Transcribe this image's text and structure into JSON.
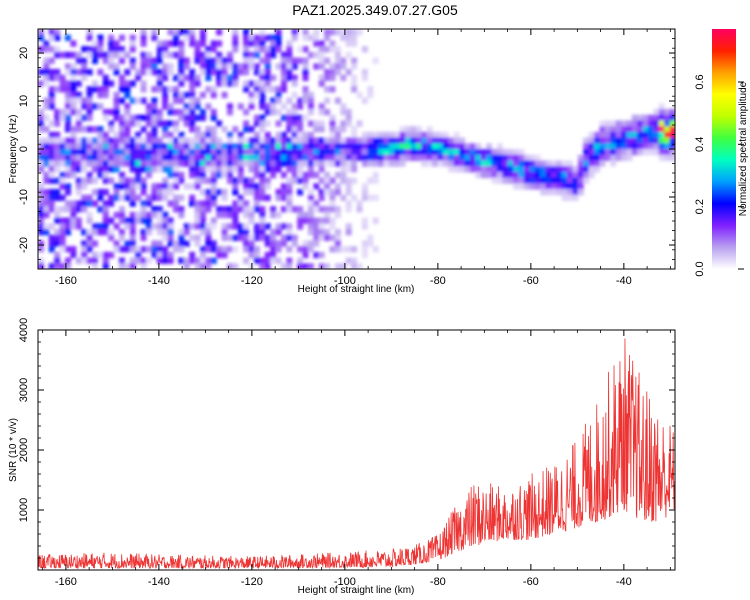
{
  "title": "PAZ1.2025.349.07.27.G05",
  "chart_data": [
    {
      "type": "heatmap",
      "xlabel": "Height of straight line (km)",
      "ylabel": "Frequency (Hz)",
      "xlim": [
        -166,
        -29
      ],
      "ylim": [
        -25,
        25
      ],
      "xticks": [
        -160,
        -140,
        -120,
        -100,
        -80,
        -60,
        -40
      ],
      "xtick_labels": [
        "-160",
        "-140",
        "-120",
        "-100",
        "-80",
        "-60",
        "-40"
      ],
      "yticks": [
        -20,
        -10,
        0,
        10,
        20
      ],
      "ytick_labels": [
        "-20",
        "-10",
        "0",
        "10",
        "20"
      ],
      "colorbar": {
        "label": "Normalized spectral amplitude",
        "range": [
          0.0,
          0.77
        ],
        "ticks": [
          0.0,
          0.2,
          0.4,
          0.6
        ],
        "tick_labels": [
          "0.0",
          "0.2",
          "0.4",
          "0.6"
        ],
        "colors": [
          "#ffffff",
          "#b8a0f0",
          "#8020ff",
          "#0000ff",
          "#00a0ff",
          "#00ffc0",
          "#40ff40",
          "#c0ff00",
          "#ffff00",
          "#ffa000",
          "#ff2000",
          "#ff0060"
        ]
      },
      "ridge": [
        {
          "x": -160,
          "y": -1
        },
        {
          "x": -150,
          "y": -1
        },
        {
          "x": -140,
          "y": -1.5
        },
        {
          "x": -130,
          "y": -1
        },
        {
          "x": -120,
          "y": -1
        },
        {
          "x": -110,
          "y": -0.5
        },
        {
          "x": -100,
          "y": -0.5
        },
        {
          "x": -90,
          "y": 0
        },
        {
          "x": -85,
          "y": 1
        },
        {
          "x": -80,
          "y": 0
        },
        {
          "x": -75,
          "y": -1
        },
        {
          "x": -70,
          "y": -2.5
        },
        {
          "x": -65,
          "y": -3.5
        },
        {
          "x": -60,
          "y": -5
        },
        {
          "x": -55,
          "y": -6
        },
        {
          "x": -50,
          "y": -7
        },
        {
          "x": -48,
          "y": -2
        },
        {
          "x": -45,
          "y": 1
        },
        {
          "x": -40,
          "y": 2
        },
        {
          "x": -35,
          "y": 3.5
        },
        {
          "x": -30,
          "y": 3.5
        }
      ]
    },
    {
      "type": "line",
      "xlabel": "Height of straight line (km)",
      "ylabel": "SNR (10 * v/v)",
      "xlim": [
        -166,
        -29
      ],
      "ylim": [
        0,
        4000
      ],
      "xticks": [
        -160,
        -140,
        -120,
        -100,
        -80,
        -60,
        -40
      ],
      "xtick_labels": [
        "-160",
        "-140",
        "-120",
        "-100",
        "-80",
        "-60",
        "-40"
      ],
      "yticks": [
        1000,
        2000,
        3000,
        4000
      ],
      "ytick_labels": [
        "1000",
        "2000",
        "3000",
        "4000"
      ],
      "series": [
        {
          "name": "SNR",
          "color": "#ee3333",
          "envelope": [
            {
              "x": -166,
              "lo": 30,
              "hi": 260
            },
            {
              "x": -150,
              "lo": 30,
              "hi": 300
            },
            {
              "x": -140,
              "lo": 30,
              "hi": 260
            },
            {
              "x": -120,
              "lo": 30,
              "hi": 230
            },
            {
              "x": -100,
              "lo": 40,
              "hi": 300
            },
            {
              "x": -90,
              "lo": 50,
              "hi": 350
            },
            {
              "x": -84,
              "lo": 100,
              "hi": 450
            },
            {
              "x": -80,
              "lo": 150,
              "hi": 600
            },
            {
              "x": -76,
              "lo": 300,
              "hi": 1100
            },
            {
              "x": -72,
              "lo": 400,
              "hi": 1500
            },
            {
              "x": -66,
              "lo": 500,
              "hi": 1400
            },
            {
              "x": -60,
              "lo": 500,
              "hi": 1600
            },
            {
              "x": -55,
              "lo": 600,
              "hi": 1800
            },
            {
              "x": -50,
              "lo": 700,
              "hi": 2200
            },
            {
              "x": -45,
              "lo": 800,
              "hi": 3000
            },
            {
              "x": -40,
              "lo": 1000,
              "hi": 4000
            },
            {
              "x": -36,
              "lo": 800,
              "hi": 3200
            },
            {
              "x": -32,
              "lo": 800,
              "hi": 2700
            },
            {
              "x": -29,
              "lo": 1000,
              "hi": 2400
            }
          ]
        }
      ]
    }
  ]
}
